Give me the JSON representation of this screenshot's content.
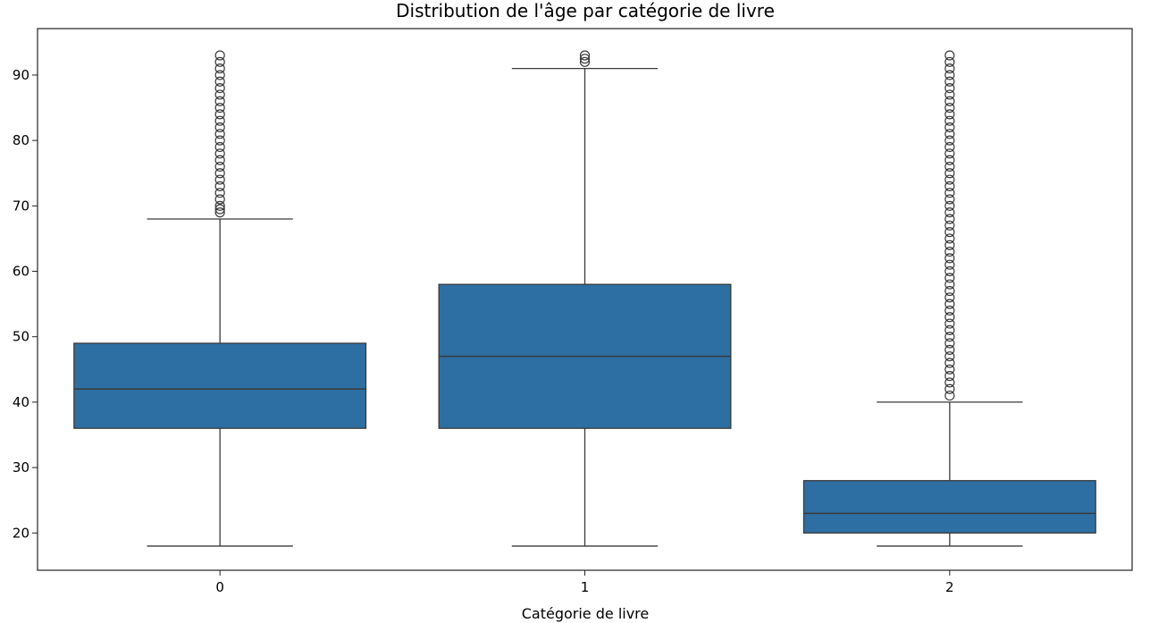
{
  "chart_data": {
    "type": "box",
    "title": "Distribution de l'âge par catégorie de livre",
    "xlabel": "Catégorie de livre",
    "ylabel": "",
    "ylim": [
      14.3,
      97.1
    ],
    "yticks": [
      20,
      30,
      40,
      50,
      60,
      70,
      80,
      90
    ],
    "categories": [
      "0",
      "1",
      "2"
    ],
    "box_color": "#2e6fa3",
    "line_color": "#3a3a3a",
    "boxes": [
      {
        "category": "0",
        "whisker_low": 18,
        "q1": 36,
        "median": 42,
        "q3": 49,
        "whisker_high": 68,
        "outliers": [
          69,
          69.5,
          70,
          71,
          72,
          73,
          74,
          75,
          76,
          77,
          78,
          79,
          80,
          81,
          82,
          83,
          84,
          85,
          86,
          87,
          88,
          89,
          90,
          91,
          92,
          93
        ]
      },
      {
        "category": "1",
        "whisker_low": 18,
        "q1": 36,
        "median": 47,
        "q3": 58,
        "whisker_high": 91,
        "outliers": [
          92,
          92.5,
          93
        ]
      },
      {
        "category": "2",
        "whisker_low": 18,
        "q1": 20,
        "median": 23,
        "q3": 28,
        "whisker_high": 40,
        "outliers": [
          41,
          42,
          43,
          44,
          45,
          46,
          47,
          48,
          49,
          50,
          51,
          52,
          53,
          54,
          55,
          56,
          57,
          58,
          59,
          60,
          61,
          62,
          63,
          64,
          65,
          66,
          67,
          68,
          69,
          70,
          71,
          72,
          73,
          74,
          75,
          76,
          77,
          78,
          79,
          80,
          81,
          82,
          83,
          84,
          85,
          86,
          87,
          88,
          89,
          90,
          91,
          92,
          93
        ]
      }
    ]
  }
}
